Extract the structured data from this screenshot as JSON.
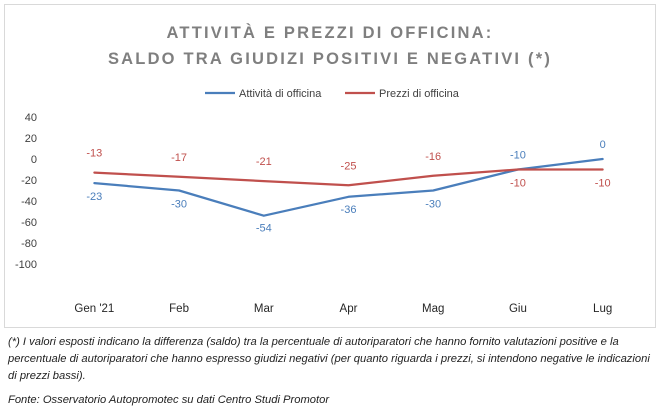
{
  "chart_data": {
    "type": "line",
    "title_lines": [
      "ATTIVITÀ E PREZZI DI OFFICINA:",
      "SALDO TRA GIUDIZI POSITIVI E NEGATIVI (*)"
    ],
    "categories": [
      "Gen '21",
      "Feb",
      "Mar",
      "Apr",
      "Mag",
      "Giu",
      "Lug"
    ],
    "series": [
      {
        "name": "Attività di officina",
        "color": "#4a7ebb",
        "values": [
          -23,
          -30,
          -54,
          -36,
          -30,
          -10,
          0
        ]
      },
      {
        "name": "Prezzi di officina",
        "color": "#c0504d",
        "values": [
          -13,
          -17,
          -21,
          -25,
          -16,
          -10,
          -10
        ]
      }
    ],
    "ylim": [
      -100,
      40
    ],
    "yticks": [
      40,
      20,
      0,
      -20,
      -40,
      -60,
      -80,
      -100
    ],
    "grid": false,
    "legend_position": "top"
  },
  "footnote": "(*) I valori esposti indicano la differenza (saldo) tra la percentuale di autoriparatori che hanno fornito valutazioni positive e la percentuale di autoriparatori che hanno espresso giudizi negativi (per quanto riguarda i prezzi, si intendono negative le indicazioni di prezzi bassi).",
  "source": "Fonte: Osservatorio Autopromotec su dati Centro Studi Promotor"
}
